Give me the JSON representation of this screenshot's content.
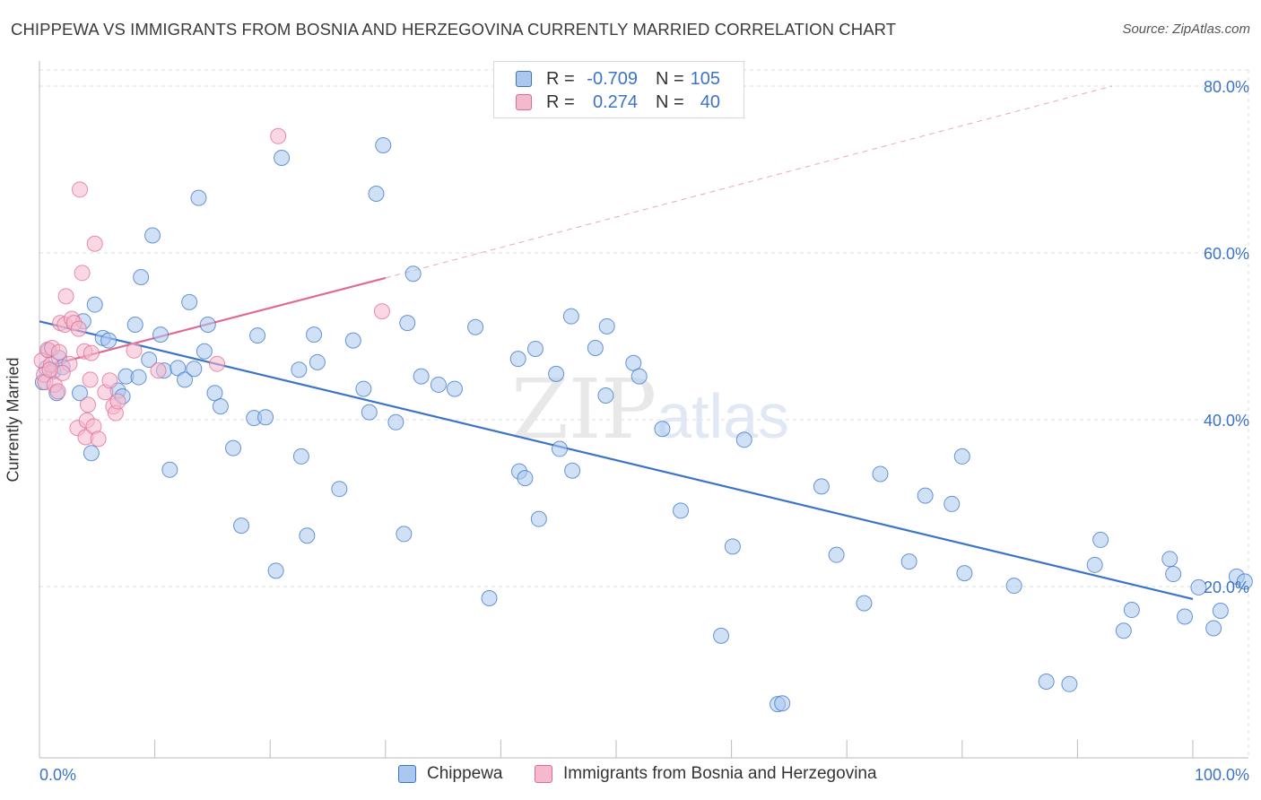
{
  "title": "CHIPPEWA VS IMMIGRANTS FROM BOSNIA AND HERZEGOVINA CURRENTLY MARRIED CORRELATION CHART",
  "source": "Source: ZipAtlas.com",
  "colors": {
    "blue": "#3b73c8",
    "blue_fill": "#aac8ee",
    "pink": "#e06a94",
    "pink_fill": "#f6b8cc",
    "grid": "#dddddd",
    "axis_text": "#3b73c8"
  },
  "legend": {
    "rows": [
      {
        "r_label": "R =",
        "r_value": "-0.709",
        "n_label": "N =",
        "n_value": "105",
        "color": "#aac8ee",
        "border": "#3b73c8"
      },
      {
        "r_label": "R =",
        "r_value": "0.274",
        "n_label": "N =",
        "n_value": "40",
        "color": "#f6b8cc",
        "border": "#e06a94"
      }
    ]
  },
  "bottom_legend": [
    {
      "label": "Chippewa",
      "color": "#aac8ee",
      "border": "#3b73c8"
    },
    {
      "label": "Immigrants from Bosnia and Herzegovina",
      "color": "#f6b8cc",
      "border": "#e06a94"
    }
  ],
  "watermark": "ZIPatlas",
  "chart_data": {
    "type": "scatter",
    "title": "CHIPPEWA VS IMMIGRANTS FROM BOSNIA AND HERZEGOVINA CURRENTLY MARRIED CORRELATION CHART",
    "xlabel": "",
    "ylabel": "Currently Married",
    "xlim": [
      0,
      100
    ],
    "ylim": [
      0,
      82
    ],
    "x_tick_labels": [
      "0.0%",
      "100.0%"
    ],
    "y_ticks": [
      20,
      40,
      60,
      80
    ],
    "y_tick_labels": [
      "20.0%",
      "40.0%",
      "60.0%",
      "80.0%"
    ],
    "grid": true,
    "legend_position": "top-center",
    "series": [
      {
        "name": "Chippewa",
        "R": -0.709,
        "N": 105,
        "color": "#3b73c8",
        "trend": {
          "x": [
            0,
            100
          ],
          "y": [
            51.8,
            18.5
          ]
        },
        "points": [
          [
            0.3,
            44.5
          ],
          [
            0.6,
            46.2
          ],
          [
            0.8,
            48.3
          ],
          [
            1.2,
            45.8
          ],
          [
            1.5,
            43.2
          ],
          [
            1.7,
            47.4
          ],
          [
            2.0,
            46.3
          ],
          [
            3.5,
            43.2
          ],
          [
            3.8,
            51.8
          ],
          [
            4.5,
            36.0
          ],
          [
            4.8,
            53.8
          ],
          [
            5.5,
            49.8
          ],
          [
            6.0,
            49.5
          ],
          [
            6.8,
            43.5
          ],
          [
            7.2,
            42.8
          ],
          [
            7.5,
            45.2
          ],
          [
            8.3,
            51.4
          ],
          [
            8.6,
            45.1
          ],
          [
            8.8,
            57.1
          ],
          [
            9.5,
            47.2
          ],
          [
            9.8,
            62.1
          ],
          [
            10.5,
            50.2
          ],
          [
            10.8,
            45.9
          ],
          [
            11.3,
            34.0
          ],
          [
            12.0,
            46.2
          ],
          [
            12.6,
            44.8
          ],
          [
            13.0,
            54.1
          ],
          [
            13.4,
            46.1
          ],
          [
            13.8,
            66.6
          ],
          [
            14.3,
            48.2
          ],
          [
            14.6,
            51.4
          ],
          [
            15.2,
            43.2
          ],
          [
            15.7,
            41.6
          ],
          [
            16.8,
            36.6
          ],
          [
            17.5,
            27.3
          ],
          [
            18.6,
            40.2
          ],
          [
            18.9,
            50.1
          ],
          [
            19.6,
            40.3
          ],
          [
            20.5,
            21.9
          ],
          [
            21.0,
            71.4
          ],
          [
            22.5,
            46.0
          ],
          [
            22.7,
            35.6
          ],
          [
            23.2,
            26.1
          ],
          [
            23.8,
            50.2
          ],
          [
            24.1,
            46.9
          ],
          [
            26.0,
            31.7
          ],
          [
            27.2,
            49.5
          ],
          [
            28.1,
            43.7
          ],
          [
            28.6,
            40.9
          ],
          [
            29.2,
            67.1
          ],
          [
            29.8,
            72.9
          ],
          [
            30.9,
            39.7
          ],
          [
            31.6,
            26.3
          ],
          [
            31.9,
            51.6
          ],
          [
            32.4,
            57.5
          ],
          [
            33.1,
            45.2
          ],
          [
            34.6,
            44.2
          ],
          [
            36.0,
            43.7
          ],
          [
            37.8,
            51.1
          ],
          [
            39.0,
            18.6
          ],
          [
            41.5,
            47.3
          ],
          [
            41.6,
            33.8
          ],
          [
            42.1,
            33.0
          ],
          [
            43.0,
            48.5
          ],
          [
            43.3,
            28.1
          ],
          [
            44.8,
            45.5
          ],
          [
            45.1,
            36.5
          ],
          [
            46.1,
            52.4
          ],
          [
            46.2,
            33.9
          ],
          [
            48.2,
            48.6
          ],
          [
            49.1,
            42.9
          ],
          [
            49.2,
            51.2
          ],
          [
            51.5,
            46.8
          ],
          [
            52.0,
            45.2
          ],
          [
            54.0,
            38.9
          ],
          [
            55.6,
            29.1
          ],
          [
            59.1,
            14.1
          ],
          [
            60.1,
            24.8
          ],
          [
            61.1,
            37.6
          ],
          [
            64.0,
            5.9
          ],
          [
            64.4,
            6.0
          ],
          [
            67.8,
            32.0
          ],
          [
            69.1,
            23.8
          ],
          [
            71.5,
            18.0
          ],
          [
            72.9,
            33.5
          ],
          [
            75.4,
            23.0
          ],
          [
            76.8,
            30.9
          ],
          [
            79.1,
            29.9
          ],
          [
            80.0,
            35.6
          ],
          [
            80.2,
            21.6
          ],
          [
            84.5,
            20.1
          ],
          [
            87.3,
            8.6
          ],
          [
            89.3,
            8.3
          ],
          [
            91.5,
            22.6
          ],
          [
            92.0,
            25.6
          ],
          [
            94.0,
            14.7
          ],
          [
            94.7,
            17.2
          ],
          [
            98.0,
            23.3
          ],
          [
            98.3,
            21.5
          ],
          [
            99.3,
            16.4
          ],
          [
            100.5,
            19.9
          ],
          [
            101.8,
            15.0
          ],
          [
            102.4,
            17.1
          ],
          [
            103.8,
            21.2
          ],
          [
            104.5,
            20.6
          ]
        ]
      },
      {
        "name": "Immigrants from Bosnia and Herzegovina",
        "R": 0.274,
        "N": 40,
        "color": "#e06a94",
        "trend": {
          "x": [
            0,
            30
          ],
          "y": [
            46.2,
            57.0
          ],
          "dashed_to": {
            "x": 93,
            "y": 80.0
          }
        },
        "points": [
          [
            0.2,
            47.1
          ],
          [
            0.4,
            45.4
          ],
          [
            0.5,
            44.5
          ],
          [
            0.7,
            48.4
          ],
          [
            1.0,
            46.6
          ],
          [
            1.1,
            48.6
          ],
          [
            1.3,
            44.2
          ],
          [
            1.6,
            43.4
          ],
          [
            1.7,
            48.1
          ],
          [
            1.8,
            51.6
          ],
          [
            2.2,
            51.4
          ],
          [
            2.3,
            54.8
          ],
          [
            2.6,
            46.7
          ],
          [
            2.8,
            52.1
          ],
          [
            3.0,
            51.6
          ],
          [
            3.4,
            50.9
          ],
          [
            3.3,
            39.0
          ],
          [
            3.5,
            67.6
          ],
          [
            3.7,
            57.6
          ],
          [
            3.9,
            48.2
          ],
          [
            4.0,
            37.9
          ],
          [
            4.1,
            39.9
          ],
          [
            4.2,
            41.8
          ],
          [
            4.4,
            44.8
          ],
          [
            4.5,
            48.0
          ],
          [
            4.7,
            39.2
          ],
          [
            4.8,
            61.1
          ],
          [
            5.1,
            37.7
          ],
          [
            5.7,
            43.3
          ],
          [
            6.1,
            44.7
          ],
          [
            6.4,
            41.6
          ],
          [
            6.6,
            40.8
          ],
          [
            6.8,
            42.2
          ],
          [
            8.2,
            48.3
          ],
          [
            10.3,
            45.9
          ],
          [
            15.4,
            46.7
          ],
          [
            20.7,
            74.0
          ],
          [
            29.7,
            53.0
          ],
          [
            2.0,
            45.6
          ],
          [
            0.9,
            46.0
          ]
        ]
      }
    ]
  }
}
